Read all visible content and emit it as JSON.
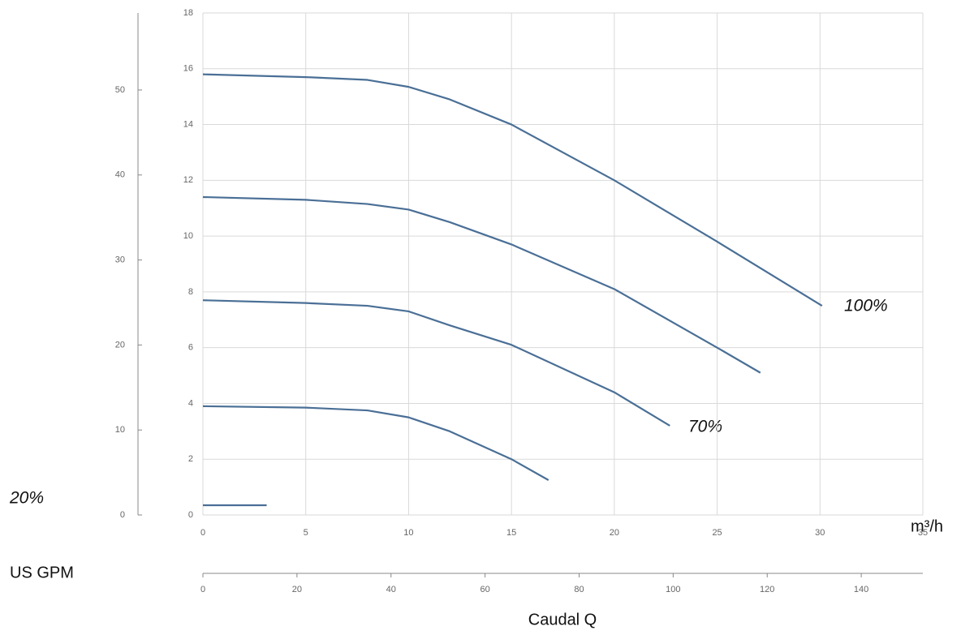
{
  "chart_data": {
    "type": "line",
    "x_label": "m³/h",
    "x2_label": "US GPM",
    "axis_title": "Caudal Q",
    "annotations": [
      "100%",
      "70%",
      "20%"
    ],
    "xlim": [
      0,
      35
    ],
    "xticks": [
      0,
      5,
      10,
      15,
      20,
      25,
      30,
      35
    ],
    "ylim": [
      0,
      18
    ],
    "yticks": [
      0,
      2,
      4,
      6,
      8,
      10,
      12,
      14,
      16,
      18
    ],
    "y2lim": [
      0,
      59.06
    ],
    "y2ticks": [
      0,
      10,
      20,
      30,
      40,
      50
    ],
    "x2lim": [
      0,
      153.1
    ],
    "x2ticks": [
      0,
      20,
      40,
      60,
      80,
      100,
      120,
      140
    ],
    "grid": true,
    "series": [
      {
        "color": "#4a6f96",
        "x": [
          0,
          5,
          8,
          10,
          12,
          15,
          20,
          25,
          30.1
        ],
        "values": [
          15.8,
          15.7,
          15.6,
          15.35,
          14.9,
          14.0,
          12.0,
          9.8,
          7.5
        ]
      },
      {
        "color": "#4a6f96",
        "x": [
          0,
          5,
          8,
          10,
          12,
          15,
          20,
          25,
          27.1
        ],
        "values": [
          11.4,
          11.3,
          11.15,
          10.95,
          10.5,
          9.7,
          8.1,
          6.0,
          5.1
        ]
      },
      {
        "color": "#4a6f96",
        "x": [
          0,
          5,
          8,
          10,
          12,
          15,
          20,
          22.7
        ],
        "values": [
          7.7,
          7.6,
          7.5,
          7.3,
          6.8,
          6.1,
          4.4,
          3.2
        ]
      },
      {
        "color": "#4a6f96",
        "x": [
          0,
          5,
          8,
          10,
          12,
          15,
          16.8
        ],
        "values": [
          3.9,
          3.85,
          3.75,
          3.5,
          3.0,
          2.0,
          1.25
        ]
      },
      {
        "color": "#4a6f96",
        "x": [
          0,
          3.1
        ],
        "values": [
          0.35,
          0.35
        ]
      }
    ]
  }
}
